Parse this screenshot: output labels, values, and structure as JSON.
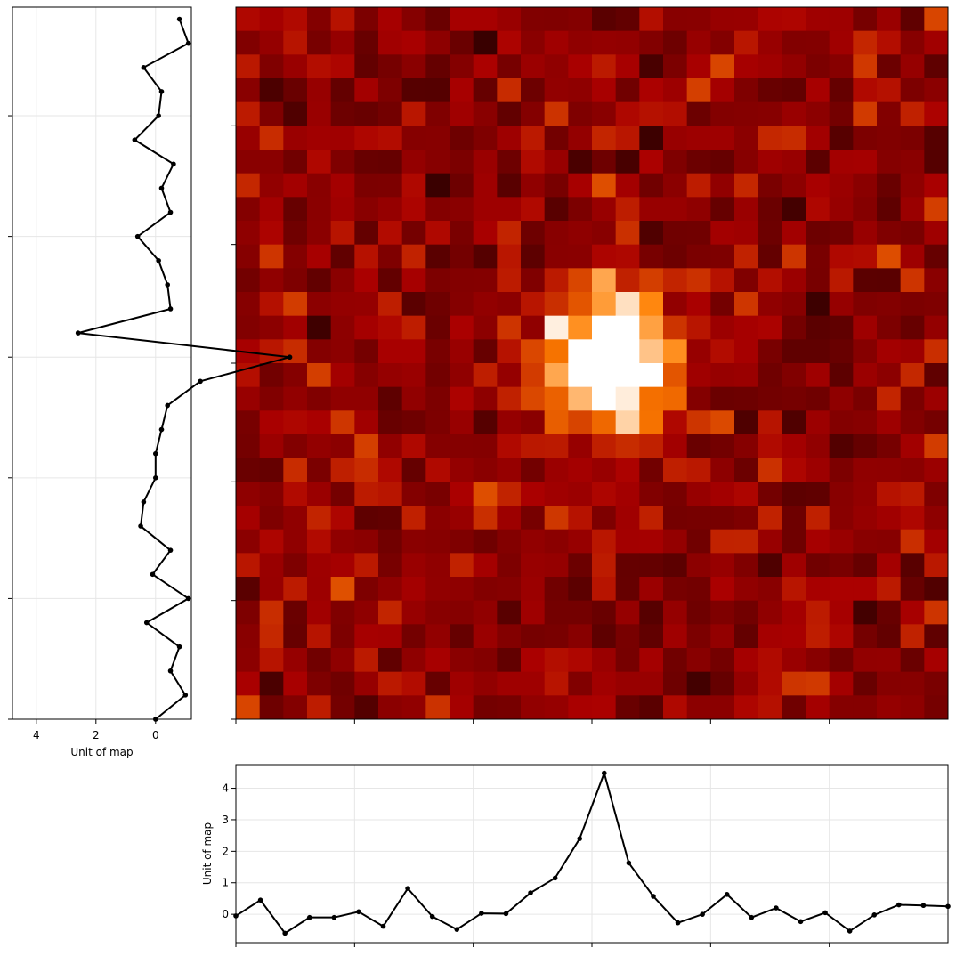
{
  "chart_data": [
    {
      "type": "heatmap",
      "colormap": "gist_heat",
      "color_range": [
        -1.0,
        4.5
      ],
      "rows": 30,
      "cols": 30,
      "x_ticks": [
        0,
        5,
        10,
        15,
        20,
        25
      ],
      "y_ticks": [
        0,
        5,
        10,
        15,
        20,
        25
      ],
      "tick_labels_shown": false,
      "grid": false,
      "description": "2D map with a bright peak near the center and noisy background"
    },
    {
      "type": "line",
      "orientation": "vertical",
      "xlabel": "Unit of map",
      "ylabel": "",
      "x_ticks": [
        4,
        2,
        0
      ],
      "x_inverted": true,
      "xlim": [
        4.8,
        -1.2
      ],
      "ylim": [
        0,
        29.5
      ],
      "y_tick_labels_shown": false,
      "grid": true,
      "marker": "o",
      "color": "#000000",
      "points": {
        "y": [
          0,
          1,
          2,
          3,
          4,
          5,
          6,
          7,
          8,
          9,
          10,
          11,
          12,
          13,
          14,
          15,
          16,
          17,
          18,
          19,
          20,
          21,
          22,
          23,
          24,
          25,
          26,
          27,
          28,
          29
        ],
        "x": [
          0.0,
          -1.0,
          -0.5,
          -0.8,
          0.3,
          -1.1,
          0.1,
          -0.5,
          0.5,
          0.4,
          0.0,
          0.0,
          -0.2,
          -0.4,
          -1.5,
          -4.5,
          2.6,
          -0.5,
          -0.4,
          -0.1,
          0.6,
          -0.5,
          -0.2,
          -0.6,
          0.7,
          -0.1,
          -0.2,
          0.4,
          -1.1,
          -0.8
        ]
      }
    },
    {
      "type": "line",
      "xlabel": "",
      "ylabel": "Unit of map",
      "y_ticks": [
        4,
        3,
        2,
        1,
        0
      ],
      "ylim": [
        -0.9,
        4.75
      ],
      "xlim": [
        0,
        29
      ],
      "x_tick_labels_shown": false,
      "grid": true,
      "marker": "o",
      "color": "#000000",
      "points": {
        "x": [
          0,
          1,
          2,
          3,
          4,
          5,
          6,
          7,
          8,
          9,
          10,
          11,
          12,
          13,
          14,
          15,
          16,
          17,
          18,
          19,
          20,
          21,
          22,
          23,
          24,
          25,
          26,
          27,
          28,
          29
        ],
        "y": [
          -0.05,
          0.45,
          -0.6,
          -0.1,
          -0.1,
          0.08,
          -0.38,
          0.82,
          -0.07,
          -0.48,
          0.03,
          0.02,
          0.68,
          1.15,
          2.4,
          4.48,
          1.63,
          0.57,
          -0.27,
          0.0,
          0.63,
          -0.1,
          0.2,
          -0.23,
          0.05,
          -0.53,
          -0.02,
          0.3,
          0.28,
          0.25
        ]
      }
    }
  ]
}
